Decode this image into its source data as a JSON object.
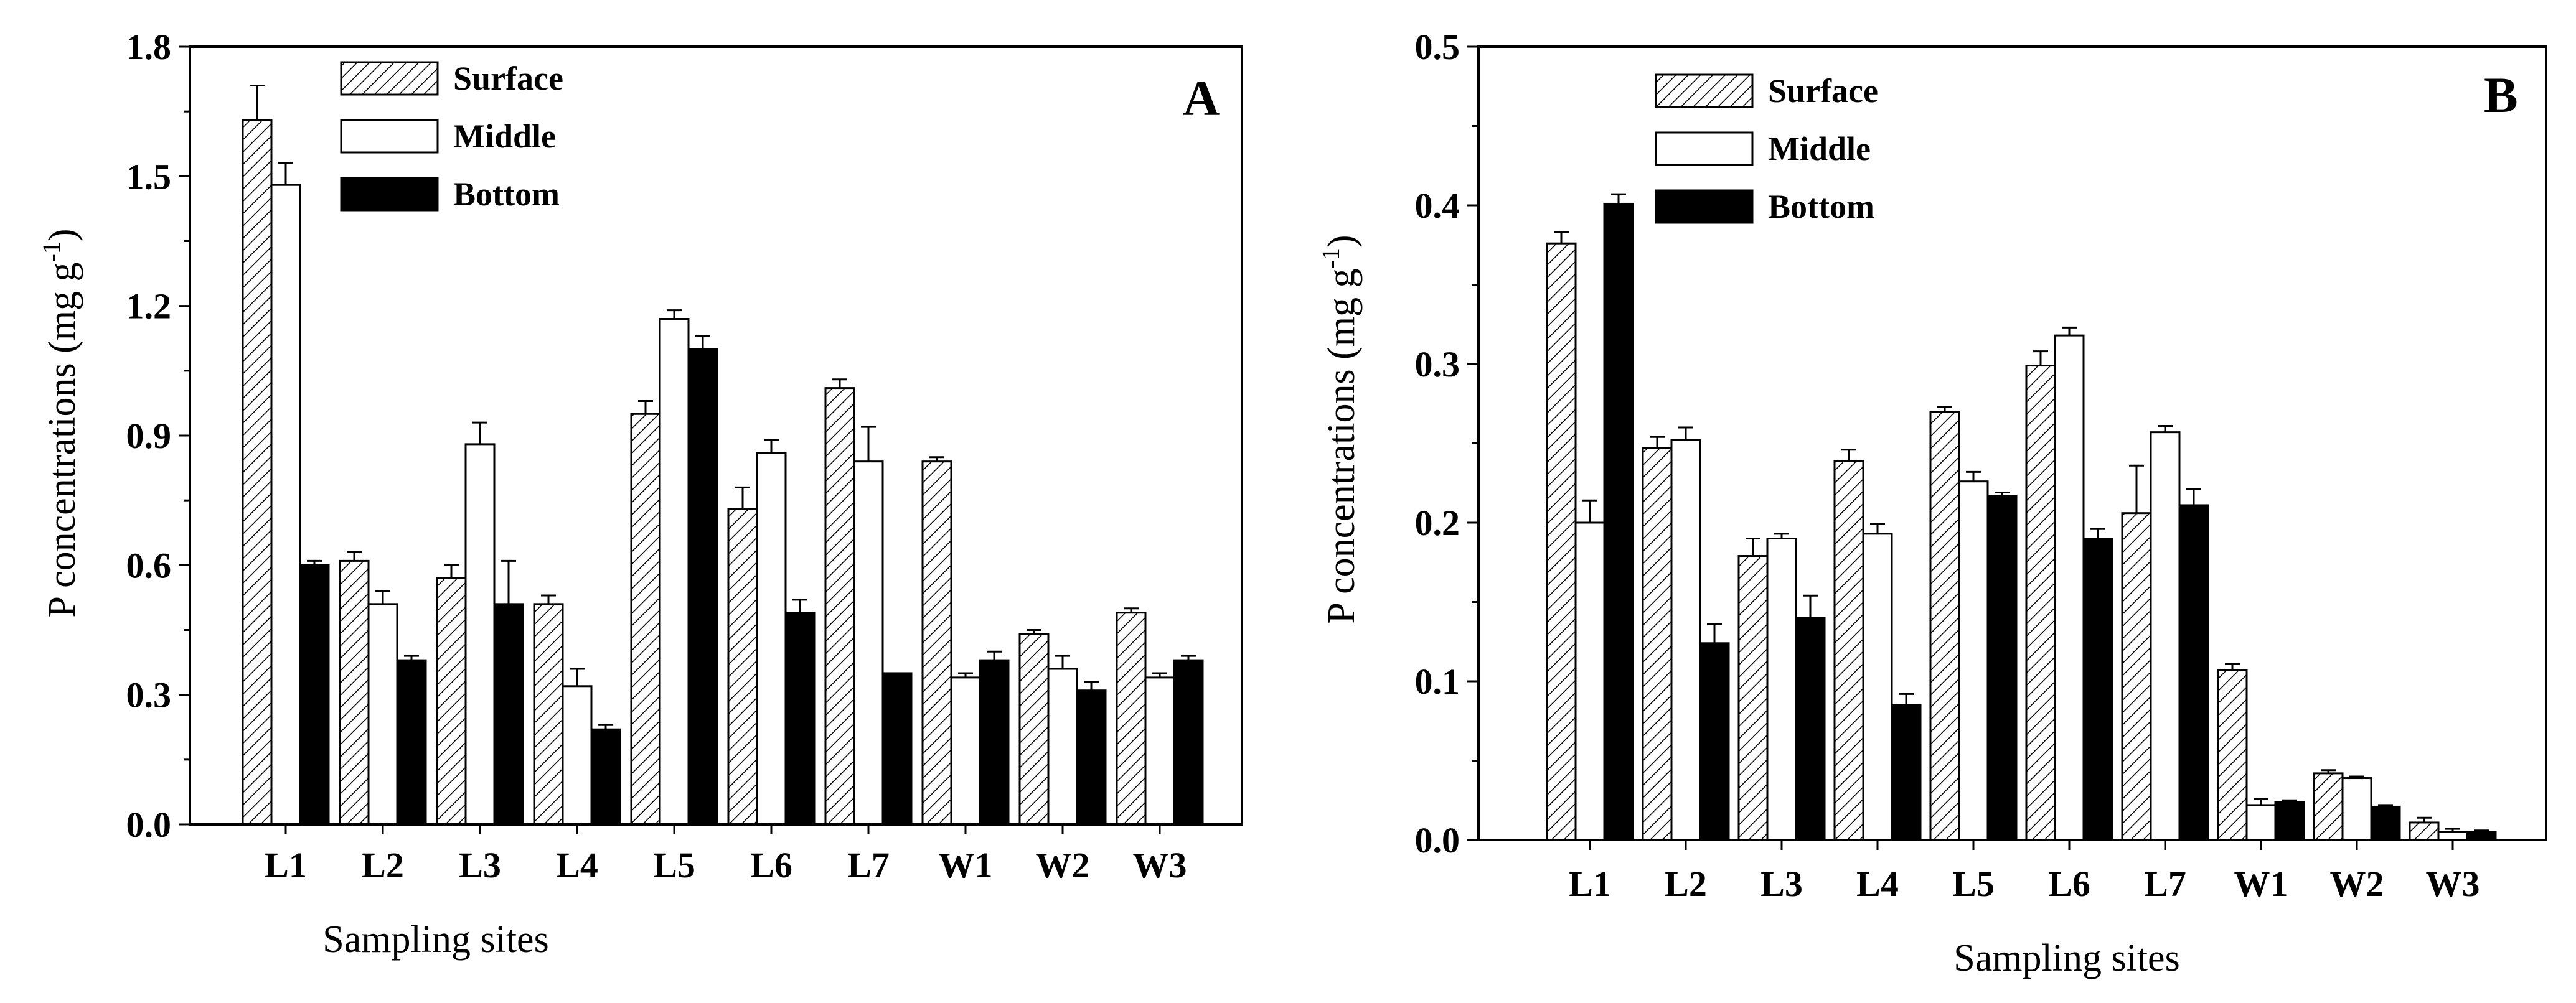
{
  "figure": {
    "xlabel_sup": "-1"
  },
  "colors": {
    "surface": "#ffffff",
    "middle": "#ffffff",
    "bottom": "#000000",
    "hatch": "#000000"
  },
  "chart_data": [
    {
      "type": "bar",
      "panel": "A",
      "title": "",
      "xlabel": "Sampling sites",
      "ylabel": "P concentrations (mg g",
      "ylabel_sup": "-1",
      "ylabel_close": ")",
      "ylim": [
        0.0,
        1.8
      ],
      "yticks": [
        0.0,
        0.3,
        0.6,
        0.9,
        1.2,
        1.5,
        1.8
      ],
      "ytick_labels": [
        "0.0",
        "0.3",
        "0.6",
        "0.9",
        "1.2",
        "1.5",
        "1.8"
      ],
      "categories": [
        "L1",
        "L2",
        "L3",
        "L4",
        "L5",
        "L6",
        "L7",
        "W1",
        "W2",
        "W3"
      ],
      "legend_position": "top-left",
      "series": [
        {
          "name": "Surface",
          "style": "hatched",
          "values": [
            1.63,
            0.61,
            0.57,
            0.51,
            0.95,
            0.73,
            1.01,
            0.84,
            0.44,
            0.49
          ],
          "errors": [
            0.08,
            0.02,
            0.03,
            0.02,
            0.03,
            0.05,
            0.02,
            0.01,
            0.01,
            0.01
          ]
        },
        {
          "name": "Middle",
          "style": "open",
          "values": [
            1.48,
            0.51,
            0.88,
            0.32,
            1.17,
            0.86,
            0.84,
            0.34,
            0.36,
            0.34
          ],
          "errors": [
            0.05,
            0.03,
            0.05,
            0.04,
            0.02,
            0.03,
            0.08,
            0.01,
            0.03,
            0.01
          ]
        },
        {
          "name": "Bottom",
          "style": "solid",
          "values": [
            0.6,
            0.38,
            0.51,
            0.22,
            1.1,
            0.49,
            0.35,
            0.38,
            0.31,
            0.38
          ],
          "errors": [
            0.01,
            0.01,
            0.1,
            0.01,
            0.03,
            0.03,
            0.0,
            0.02,
            0.02,
            0.01
          ]
        }
      ]
    },
    {
      "type": "bar",
      "panel": "B",
      "title": "",
      "xlabel": "Sampling sites",
      "ylabel": "P concentrations (mg g",
      "ylabel_sup": "-1",
      "ylabel_close": ")",
      "ylim": [
        0.0,
        0.5
      ],
      "yticks": [
        0.0,
        0.1,
        0.2,
        0.3,
        0.4,
        0.5
      ],
      "ytick_labels": [
        "0.0",
        "0.1",
        "0.2",
        "0.3",
        "0.4",
        "0.5"
      ],
      "categories": [
        "L1",
        "L2",
        "L3",
        "L4",
        "L5",
        "L6",
        "L7",
        "W1",
        "W2",
        "W3"
      ],
      "legend_position": "top-left",
      "series": [
        {
          "name": "Surface",
          "style": "hatched",
          "values": [
            0.376,
            0.247,
            0.179,
            0.239,
            0.27,
            0.299,
            0.206,
            0.107,
            0.042,
            0.011
          ],
          "errors": [
            0.007,
            0.007,
            0.011,
            0.007,
            0.003,
            0.009,
            0.03,
            0.004,
            0.002,
            0.003
          ]
        },
        {
          "name": "Middle",
          "style": "open",
          "values": [
            0.2,
            0.252,
            0.19,
            0.193,
            0.226,
            0.318,
            0.257,
            0.022,
            0.039,
            0.005
          ],
          "errors": [
            0.014,
            0.008,
            0.003,
            0.006,
            0.006,
            0.005,
            0.004,
            0.004,
            0.001,
            0.002
          ]
        },
        {
          "name": "Bottom",
          "style": "solid",
          "values": [
            0.401,
            0.124,
            0.14,
            0.085,
            0.217,
            0.19,
            0.211,
            0.024,
            0.021,
            0.005
          ],
          "errors": [
            0.006,
            0.012,
            0.014,
            0.007,
            0.002,
            0.006,
            0.01,
            0.001,
            0.001,
            0.001
          ]
        }
      ]
    }
  ]
}
